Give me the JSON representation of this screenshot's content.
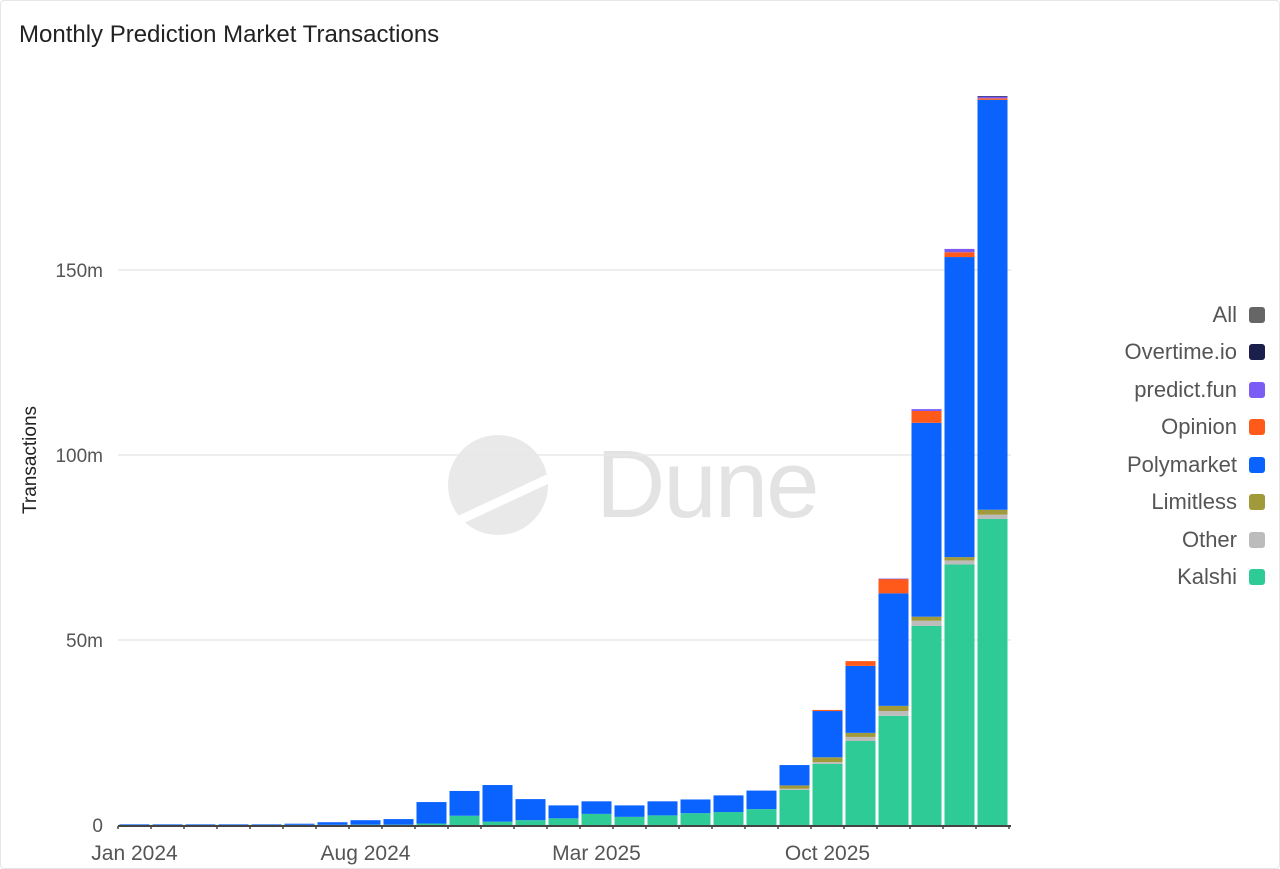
{
  "title": "Monthly Prediction Market Transactions",
  "watermark": "Dune",
  "legend": [
    {
      "name": "All",
      "color": "#666666"
    },
    {
      "name": "Overtime.io",
      "color": "#1b1f4b"
    },
    {
      "name": "predict.fun",
      "color": "#7b5cf5"
    },
    {
      "name": "Opinion",
      "color": "#ff5a1a"
    },
    {
      "name": "Polymarket",
      "color": "#0a62ff"
    },
    {
      "name": "Limitless",
      "color": "#a09a3a"
    },
    {
      "name": "Other",
      "color": "#bcbcbc"
    },
    {
      "name": "Kalshi",
      "color": "#2ecb97"
    }
  ],
  "chart_data": {
    "type": "bar",
    "stacked": true,
    "title": "Monthly Prediction Market Transactions",
    "xlabel": "",
    "ylabel": "Transactions",
    "ylim": [
      0,
      200
    ],
    "y_unit": "m",
    "yticks": [
      0,
      50,
      100,
      150
    ],
    "ytick_labels": [
      "0",
      "50m",
      "100m",
      "150m"
    ],
    "grid": true,
    "legend_position": "right",
    "categories": [
      "Jan 2024",
      "Feb 2024",
      "Mar 2024",
      "Apr 2024",
      "May 2024",
      "Jun 2024",
      "Jul 2024",
      "Aug 2024",
      "Sep 2024",
      "Oct 2024",
      "Nov 2024",
      "Dec 2024",
      "Jan 2025",
      "Feb 2025",
      "Mar 2025",
      "Apr 2025",
      "May 2025",
      "Jun 2025",
      "Jul 2025",
      "Aug 2025",
      "Sep 2025",
      "Oct 2025",
      "Nov 2025",
      "Dec 2025",
      "Jan 2026",
      "Feb 2026",
      "Mar 2026"
    ],
    "xtick_labels": [
      {
        "category": "Jan 2024",
        "label": "Jan 2024"
      },
      {
        "category": "Aug 2024",
        "label": "Aug 2024"
      },
      {
        "category": "Mar 2025",
        "label": "Mar 2025"
      },
      {
        "category": "Oct 2025",
        "label": "Oct 2025"
      }
    ],
    "series": [
      {
        "name": "Kalshi",
        "color": "#2ecb97",
        "values": [
          0.05,
          0.05,
          0.05,
          0.05,
          0.05,
          0.05,
          0.05,
          0.1,
          0.1,
          0.4,
          2.5,
          0.9,
          1.3,
          1.8,
          3.0,
          2.2,
          2.6,
          3.2,
          3.5,
          4.3,
          9.5,
          16.5,
          22.7,
          29.5,
          53.8,
          70.4,
          82.7
        ]
      },
      {
        "name": "Other",
        "color": "#bcbcbc",
        "values": [
          0,
          0,
          0,
          0,
          0,
          0,
          0,
          0,
          0,
          0,
          0,
          0,
          0,
          0,
          0,
          0,
          0,
          0,
          0,
          0,
          0.3,
          0.5,
          1.1,
          1.3,
          1.4,
          1.1,
          1.2
        ]
      },
      {
        "name": "Limitless",
        "color": "#a09a3a",
        "values": [
          0,
          0,
          0,
          0,
          0,
          0,
          0,
          0,
          0,
          0,
          0,
          0,
          0,
          0,
          0,
          0,
          0,
          0,
          0,
          0,
          0.9,
          1.3,
          1.1,
          1.4,
          1.1,
          0.9,
          1.3
        ]
      },
      {
        "name": "Polymarket",
        "color": "#0a62ff",
        "values": [
          0.15,
          0.15,
          0.15,
          0.15,
          0.15,
          0.3,
          0.7,
          1.2,
          1.5,
          5.8,
          6.7,
          9.9,
          5.7,
          3.5,
          3.4,
          3.1,
          3.8,
          3.7,
          4.5,
          5.0,
          5.5,
          12.5,
          18.1,
          30.4,
          52.4,
          81.1,
          110.8
        ]
      },
      {
        "name": "Opinion",
        "color": "#ff5a1a",
        "values": [
          0,
          0,
          0,
          0,
          0,
          0,
          0,
          0,
          0,
          0,
          0,
          0,
          0,
          0,
          0,
          0,
          0,
          0,
          0,
          0,
          0,
          0.3,
          1.3,
          3.9,
          3.2,
          1.3,
          0.4
        ]
      },
      {
        "name": "predict.fun",
        "color": "#7b5cf5",
        "values": [
          0,
          0,
          0,
          0,
          0,
          0,
          0,
          0,
          0,
          0,
          0,
          0,
          0,
          0,
          0,
          0,
          0,
          0,
          0,
          0,
          0,
          0,
          0,
          0.1,
          0.5,
          0.9,
          0.5
        ]
      },
      {
        "name": "Overtime.io",
        "color": "#1b1f4b",
        "values": [
          0,
          0,
          0,
          0,
          0,
          0,
          0,
          0,
          0,
          0,
          0,
          0,
          0,
          0,
          0,
          0,
          0,
          0,
          0,
          0,
          0,
          0,
          0,
          0,
          0,
          0,
          0.1
        ]
      }
    ]
  }
}
